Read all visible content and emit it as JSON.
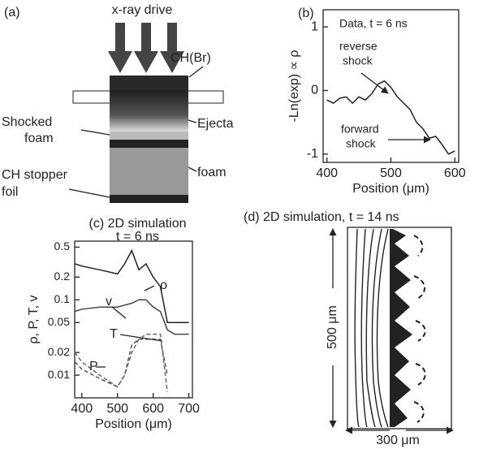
{
  "diagram_a": {
    "panel_label": "(a)",
    "drive": "x-ray drive",
    "ablator": "CH(Br)",
    "shocked_foam": [
      "Shocked",
      "foam"
    ],
    "ejecta": "Ejecta",
    "stopper": [
      "CH stopper",
      "foil"
    ],
    "foam": "foam"
  },
  "chart_data": [
    {
      "type": "line",
      "panel_label": "(b)",
      "title": "Data, t = 6 ns",
      "x_label": "Position (μm)",
      "y_label": "-Ln(exp) ∝ ρ",
      "annotations": [
        "reverse",
        "shock",
        "forward",
        "shock"
      ],
      "x": [
        400,
        410,
        420,
        430,
        440,
        450,
        460,
        470,
        480,
        490,
        500,
        510,
        520,
        530,
        540,
        550,
        560,
        570,
        580,
        590,
        600
      ],
      "series": [
        {
          "name": null,
          "color": "#222222",
          "values": [
            -0.15,
            -0.2,
            -0.12,
            -0.1,
            -0.2,
            -0.1,
            -0.15,
            -0.05,
            0.1,
            0.15,
            0.05,
            -0.1,
            -0.2,
            -0.3,
            -0.5,
            -0.6,
            -0.75,
            -0.72,
            -0.85,
            -1.0,
            -0.95
          ]
        }
      ],
      "xlim": [
        394,
        606
      ],
      "ylim": [
        -1.13,
        1.27
      ],
      "xticks": [
        400,
        500,
        600
      ],
      "yticks": [
        1,
        0,
        -1
      ]
    },
    {
      "type": "line",
      "title": "(c) 2D simulation",
      "subtitle": "t = 6 ns",
      "x_label": "Position (μm)",
      "y_label": "ρ, P, T, v",
      "log_y": true,
      "x": [
        380,
        400,
        450,
        500,
        520,
        540,
        560,
        580,
        600,
        620,
        640,
        660,
        700
      ],
      "series": [
        {
          "name": "ρ",
          "color": "#222222",
          "values": [
            0.3,
            0.28,
            0.25,
            0.22,
            0.3,
            0.45,
            0.25,
            0.3,
            0.2,
            0.15,
            0.05,
            0.05,
            0.05
          ]
        },
        {
          "name": "v",
          "color": "#444444",
          "values": [
            0.07,
            0.075,
            0.08,
            0.08,
            0.085,
            0.09,
            0.1,
            0.1,
            0.08,
            0.07,
            0.04,
            0.035,
            0.035
          ]
        },
        {
          "name": "T",
          "color": "#555555",
          "values": [
            0.015,
            0.012,
            0.009,
            0.007,
            0.01,
            0.025,
            0.03,
            0.03,
            0.03,
            0.03,
            0.01,
            null,
            null
          ]
        },
        {
          "name": "P",
          "color": "#666666",
          "values": [
            0.02,
            0.015,
            0.01,
            0.007,
            0.01,
            0.02,
            0.03,
            0.035,
            0.035,
            0.035,
            0.006,
            null,
            null
          ]
        }
      ],
      "xlim": [
        380,
        710
      ],
      "ylim": [
        0.005,
        0.6
      ],
      "xticks": [
        400,
        500,
        600,
        700
      ],
      "yticks": [
        0.5,
        0.2,
        0.1,
        0.05,
        0.02,
        0.01
      ]
    }
  ],
  "diagram_d": {
    "title": "(d) 2D simulation, t = 14 ns",
    "height_label": "500 μm",
    "width_label": "300 μm"
  }
}
